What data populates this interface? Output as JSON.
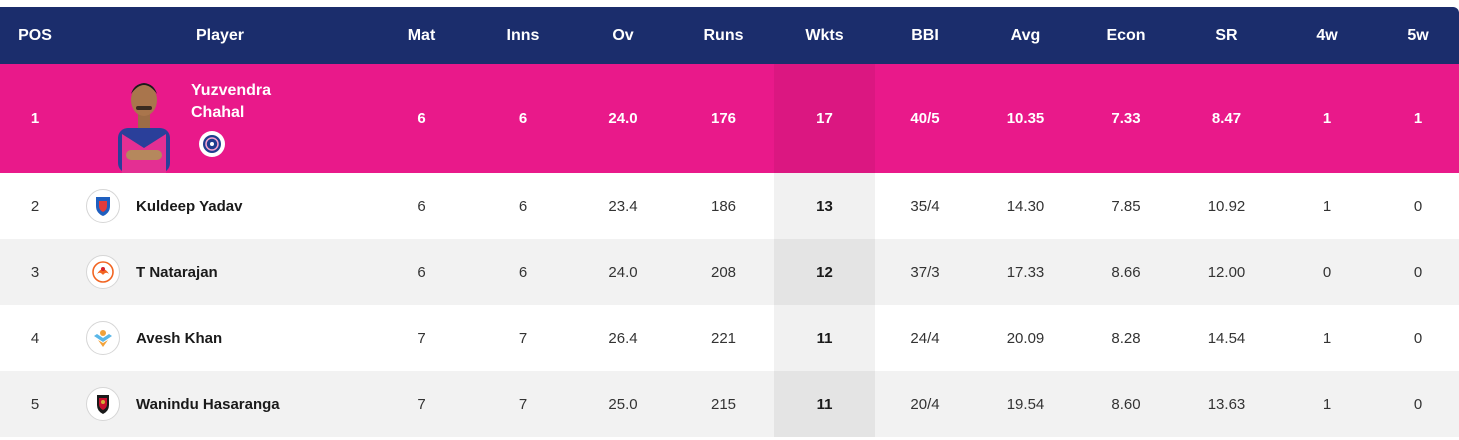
{
  "columns": [
    "POS",
    "Player",
    "Mat",
    "Inns",
    "Ov",
    "Runs",
    "Wkts",
    "BBI",
    "Avg",
    "Econ",
    "SR",
    "4w",
    "5w"
  ],
  "leader": {
    "pos": "1",
    "name_line1": "Yuzvendra",
    "name_line2": "Chahal",
    "mat": "6",
    "inns": "6",
    "ov": "24.0",
    "runs": "176",
    "wkts": "17",
    "bbi": "40/5",
    "avg": "10.35",
    "econ": "7.33",
    "sr": "8.47",
    "w4": "1",
    "w5": "1",
    "team_icon": "rajasthan-royals-logo"
  },
  "rows": [
    {
      "pos": "2",
      "name": "Kuldeep Yadav",
      "mat": "6",
      "inns": "6",
      "ov": "23.4",
      "runs": "186",
      "wkts": "13",
      "bbi": "35/4",
      "avg": "14.30",
      "econ": "7.85",
      "sr": "10.92",
      "w4": "1",
      "w5": "0",
      "team_icon": "delhi-capitals-logo"
    },
    {
      "pos": "3",
      "name": "T Natarajan",
      "mat": "6",
      "inns": "6",
      "ov": "24.0",
      "runs": "208",
      "wkts": "12",
      "bbi": "37/3",
      "avg": "17.33",
      "econ": "8.66",
      "sr": "12.00",
      "w4": "0",
      "w5": "0",
      "team_icon": "sunrisers-hyderabad-logo"
    },
    {
      "pos": "4",
      "name": "Avesh Khan",
      "mat": "7",
      "inns": "7",
      "ov": "26.4",
      "runs": "221",
      "wkts": "11",
      "bbi": "24/4",
      "avg": "20.09",
      "econ": "8.28",
      "sr": "14.54",
      "w4": "1",
      "w5": "0",
      "team_icon": "lucknow-super-giants-logo"
    },
    {
      "pos": "5",
      "name": "Wanindu Hasaranga",
      "mat": "7",
      "inns": "7",
      "ov": "25.0",
      "runs": "215",
      "wkts": "11",
      "bbi": "20/4",
      "avg": "19.54",
      "econ": "8.60",
      "sr": "13.63",
      "w4": "1",
      "w5": "0",
      "team_icon": "royal-challengers-logo"
    }
  ],
  "colors": {
    "header_bg": "#1b2d6c",
    "leader_bg": "#e9198a",
    "row_alt_bg": "#f2f2f2"
  }
}
